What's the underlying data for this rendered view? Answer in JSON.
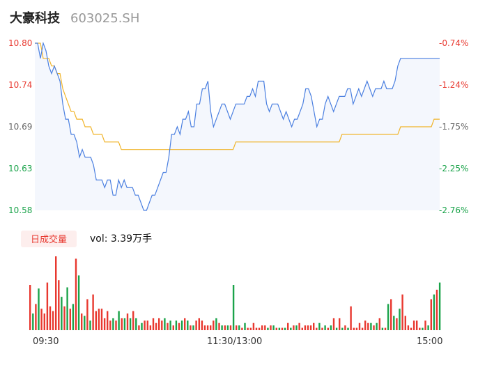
{
  "header": {
    "name": "大豪科技",
    "code": "603025.SH"
  },
  "volume_panel": {
    "badge": "日成交量",
    "vol_text": "vol: 3.39万手"
  },
  "colors": {
    "price_line": "#4a7fe0",
    "avg_line": "#f0b429",
    "up": "#e8382f",
    "down": "#1aa34a",
    "area_fill": "#f4f7fd"
  },
  "chart_data": {
    "type": "line",
    "price_axis": {
      "ticks": [
        10.8,
        10.74,
        10.69,
        10.63,
        10.58
      ],
      "tick_labels": [
        "10.80",
        "10.74",
        "10.69",
        "10.63",
        "10.58"
      ],
      "ylim": [
        10.58,
        10.8
      ]
    },
    "pct_axis": {
      "tick_labels": [
        "-0.74%",
        "-1.24%",
        "-1.75%",
        "-2.25%",
        "-2.76%"
      ]
    },
    "time_labels": [
      "09:30",
      "11:30/13:00",
      "15:00"
    ],
    "series": [
      {
        "values": [
          10.8,
          10.8,
          10.78,
          10.8,
          10.79,
          10.77,
          10.76,
          10.77,
          10.76,
          10.75,
          10.72,
          10.7,
          10.7,
          10.68,
          10.68,
          10.67,
          10.65,
          10.66,
          10.65,
          10.65,
          10.65,
          10.64,
          10.62,
          10.62,
          10.62,
          10.61,
          10.62,
          10.62,
          10.6,
          10.6,
          10.62,
          10.61,
          10.62,
          10.61,
          10.61,
          10.61,
          10.6,
          10.6,
          10.59,
          10.58,
          10.58,
          10.59,
          10.6,
          10.6,
          10.61,
          10.62,
          10.63,
          10.63,
          10.65,
          10.68,
          10.68,
          10.69,
          10.68,
          10.7,
          10.7,
          10.71,
          10.69,
          10.69,
          10.72,
          10.72,
          10.74,
          10.74,
          10.75,
          10.71,
          10.69,
          10.7,
          10.71,
          10.72,
          10.72,
          10.71,
          10.7,
          10.71,
          10.72,
          10.72,
          10.72,
          10.72,
          10.73,
          10.73,
          10.74,
          10.73,
          10.75,
          10.75,
          10.75,
          10.72,
          10.71,
          10.72,
          10.72,
          10.72,
          10.71,
          10.7,
          10.71,
          10.7,
          10.69,
          10.7,
          10.7,
          10.71,
          10.72,
          10.74,
          10.74,
          10.73,
          10.71,
          10.69,
          10.7,
          10.7,
          10.72,
          10.73,
          10.72,
          10.71,
          10.72,
          10.73,
          10.73,
          10.73,
          10.74,
          10.74,
          10.72,
          10.73,
          10.74,
          10.73,
          10.74,
          10.75,
          10.74,
          10.73,
          10.74,
          10.74,
          10.74,
          10.75,
          10.74,
          10.74,
          10.74,
          10.75,
          10.77,
          10.78,
          10.78,
          10.78,
          10.78,
          10.78,
          10.78,
          10.78,
          10.78,
          10.78,
          10.78,
          10.78,
          10.78,
          10.78,
          10.78,
          10.78
        ],
        "color": "#4a7fe0"
      },
      {
        "values": [
          10.8,
          10.8,
          10.8,
          10.78,
          10.78,
          10.78,
          10.77,
          10.77,
          10.76,
          10.76,
          10.74,
          10.73,
          10.72,
          10.71,
          10.71,
          10.7,
          10.7,
          10.7,
          10.69,
          10.69,
          10.69,
          10.68,
          10.68,
          10.68,
          10.68,
          10.67,
          10.67,
          10.67,
          10.67,
          10.67,
          10.67,
          10.66,
          10.66,
          10.66,
          10.66,
          10.66,
          10.66,
          10.66,
          10.66,
          10.66,
          10.66,
          10.66,
          10.66,
          10.66,
          10.66,
          10.66,
          10.66,
          10.66,
          10.66,
          10.66,
          10.66,
          10.66,
          10.66,
          10.66,
          10.66,
          10.66,
          10.66,
          10.66,
          10.66,
          10.66,
          10.66,
          10.66,
          10.66,
          10.66,
          10.66,
          10.66,
          10.66,
          10.66,
          10.66,
          10.66,
          10.66,
          10.66,
          10.67,
          10.67,
          10.67,
          10.67,
          10.67,
          10.67,
          10.67,
          10.67,
          10.67,
          10.67,
          10.67,
          10.67,
          10.67,
          10.67,
          10.67,
          10.67,
          10.67,
          10.67,
          10.67,
          10.67,
          10.67,
          10.67,
          10.67,
          10.67,
          10.67,
          10.67,
          10.67,
          10.67,
          10.67,
          10.67,
          10.67,
          10.67,
          10.67,
          10.67,
          10.67,
          10.67,
          10.67,
          10.67,
          10.68,
          10.68,
          10.68,
          10.68,
          10.68,
          10.68,
          10.68,
          10.68,
          10.68,
          10.68,
          10.68,
          10.68,
          10.68,
          10.68,
          10.68,
          10.68,
          10.68,
          10.68,
          10.68,
          10.68,
          10.68,
          10.69,
          10.69,
          10.69,
          10.69,
          10.69,
          10.69,
          10.69,
          10.69,
          10.69,
          10.69,
          10.69,
          10.69,
          10.7,
          10.7,
          10.7
        ],
        "color": "#f0b429"
      }
    ],
    "volume": [
      38,
      14,
      22,
      35,
      18,
      14,
      40,
      20,
      16,
      62,
      42,
      28,
      20,
      36,
      18,
      22,
      60,
      46,
      14,
      12,
      26,
      8,
      30,
      16,
      18,
      18,
      10,
      16,
      8,
      10,
      8,
      16,
      10,
      10,
      14,
      10,
      16,
      10,
      4,
      6,
      8,
      8,
      4,
      10,
      6,
      10,
      8,
      10,
      6,
      8,
      4,
      8,
      6,
      8,
      10,
      8,
      4,
      4,
      8,
      10,
      8,
      4,
      4,
      4,
      8,
      10,
      6,
      4,
      4,
      4,
      4,
      38,
      4,
      4,
      2,
      6,
      2,
      2,
      6,
      2,
      2,
      4,
      4,
      2,
      4,
      4,
      2,
      2,
      2,
      2,
      6,
      2,
      4,
      4,
      6,
      2,
      4,
      4,
      4,
      6,
      2,
      6,
      2,
      4,
      2,
      4,
      10,
      2,
      10,
      2,
      4,
      2,
      20,
      2,
      2,
      6,
      2,
      8,
      6,
      6,
      4,
      6,
      10,
      2,
      2,
      22,
      26,
      12,
      10,
      18,
      30,
      12,
      4,
      2,
      8,
      8,
      2,
      2,
      8,
      4,
      26,
      30,
      34,
      40
    ],
    "volume_up": [
      false,
      false,
      false,
      false,
      false,
      false,
      false,
      false,
      false,
      false,
      false,
      false,
      false,
      false,
      false,
      false,
      false,
      false,
      false,
      false,
      false,
      false,
      false,
      false,
      false,
      false,
      false,
      false,
      false,
      false,
      false,
      false,
      false,
      false,
      false,
      false,
      false,
      false,
      false,
      false,
      false,
      false,
      false,
      false,
      false,
      false,
      false,
      false,
      false,
      false,
      false,
      false,
      false,
      false,
      false,
      false,
      false,
      false,
      false,
      false,
      false,
      false,
      false,
      false,
      false,
      false,
      false,
      false,
      false,
      false,
      false,
      false,
      false,
      false,
      false,
      false,
      false,
      false,
      false,
      false,
      false,
      false,
      false,
      false,
      false,
      false,
      false,
      false,
      false,
      false,
      false,
      false,
      false,
      false,
      false,
      false,
      false,
      false,
      false,
      false,
      false,
      false,
      false,
      false,
      false,
      false,
      false,
      false,
      false,
      false,
      false,
      false,
      false,
      false,
      false,
      false,
      false,
      false,
      false,
      false,
      false,
      false,
      false,
      false,
      false,
      false,
      false,
      false,
      false,
      false,
      false,
      false,
      false,
      false,
      false,
      false,
      false,
      false,
      false,
      false,
      false,
      false,
      false,
      false
    ]
  }
}
